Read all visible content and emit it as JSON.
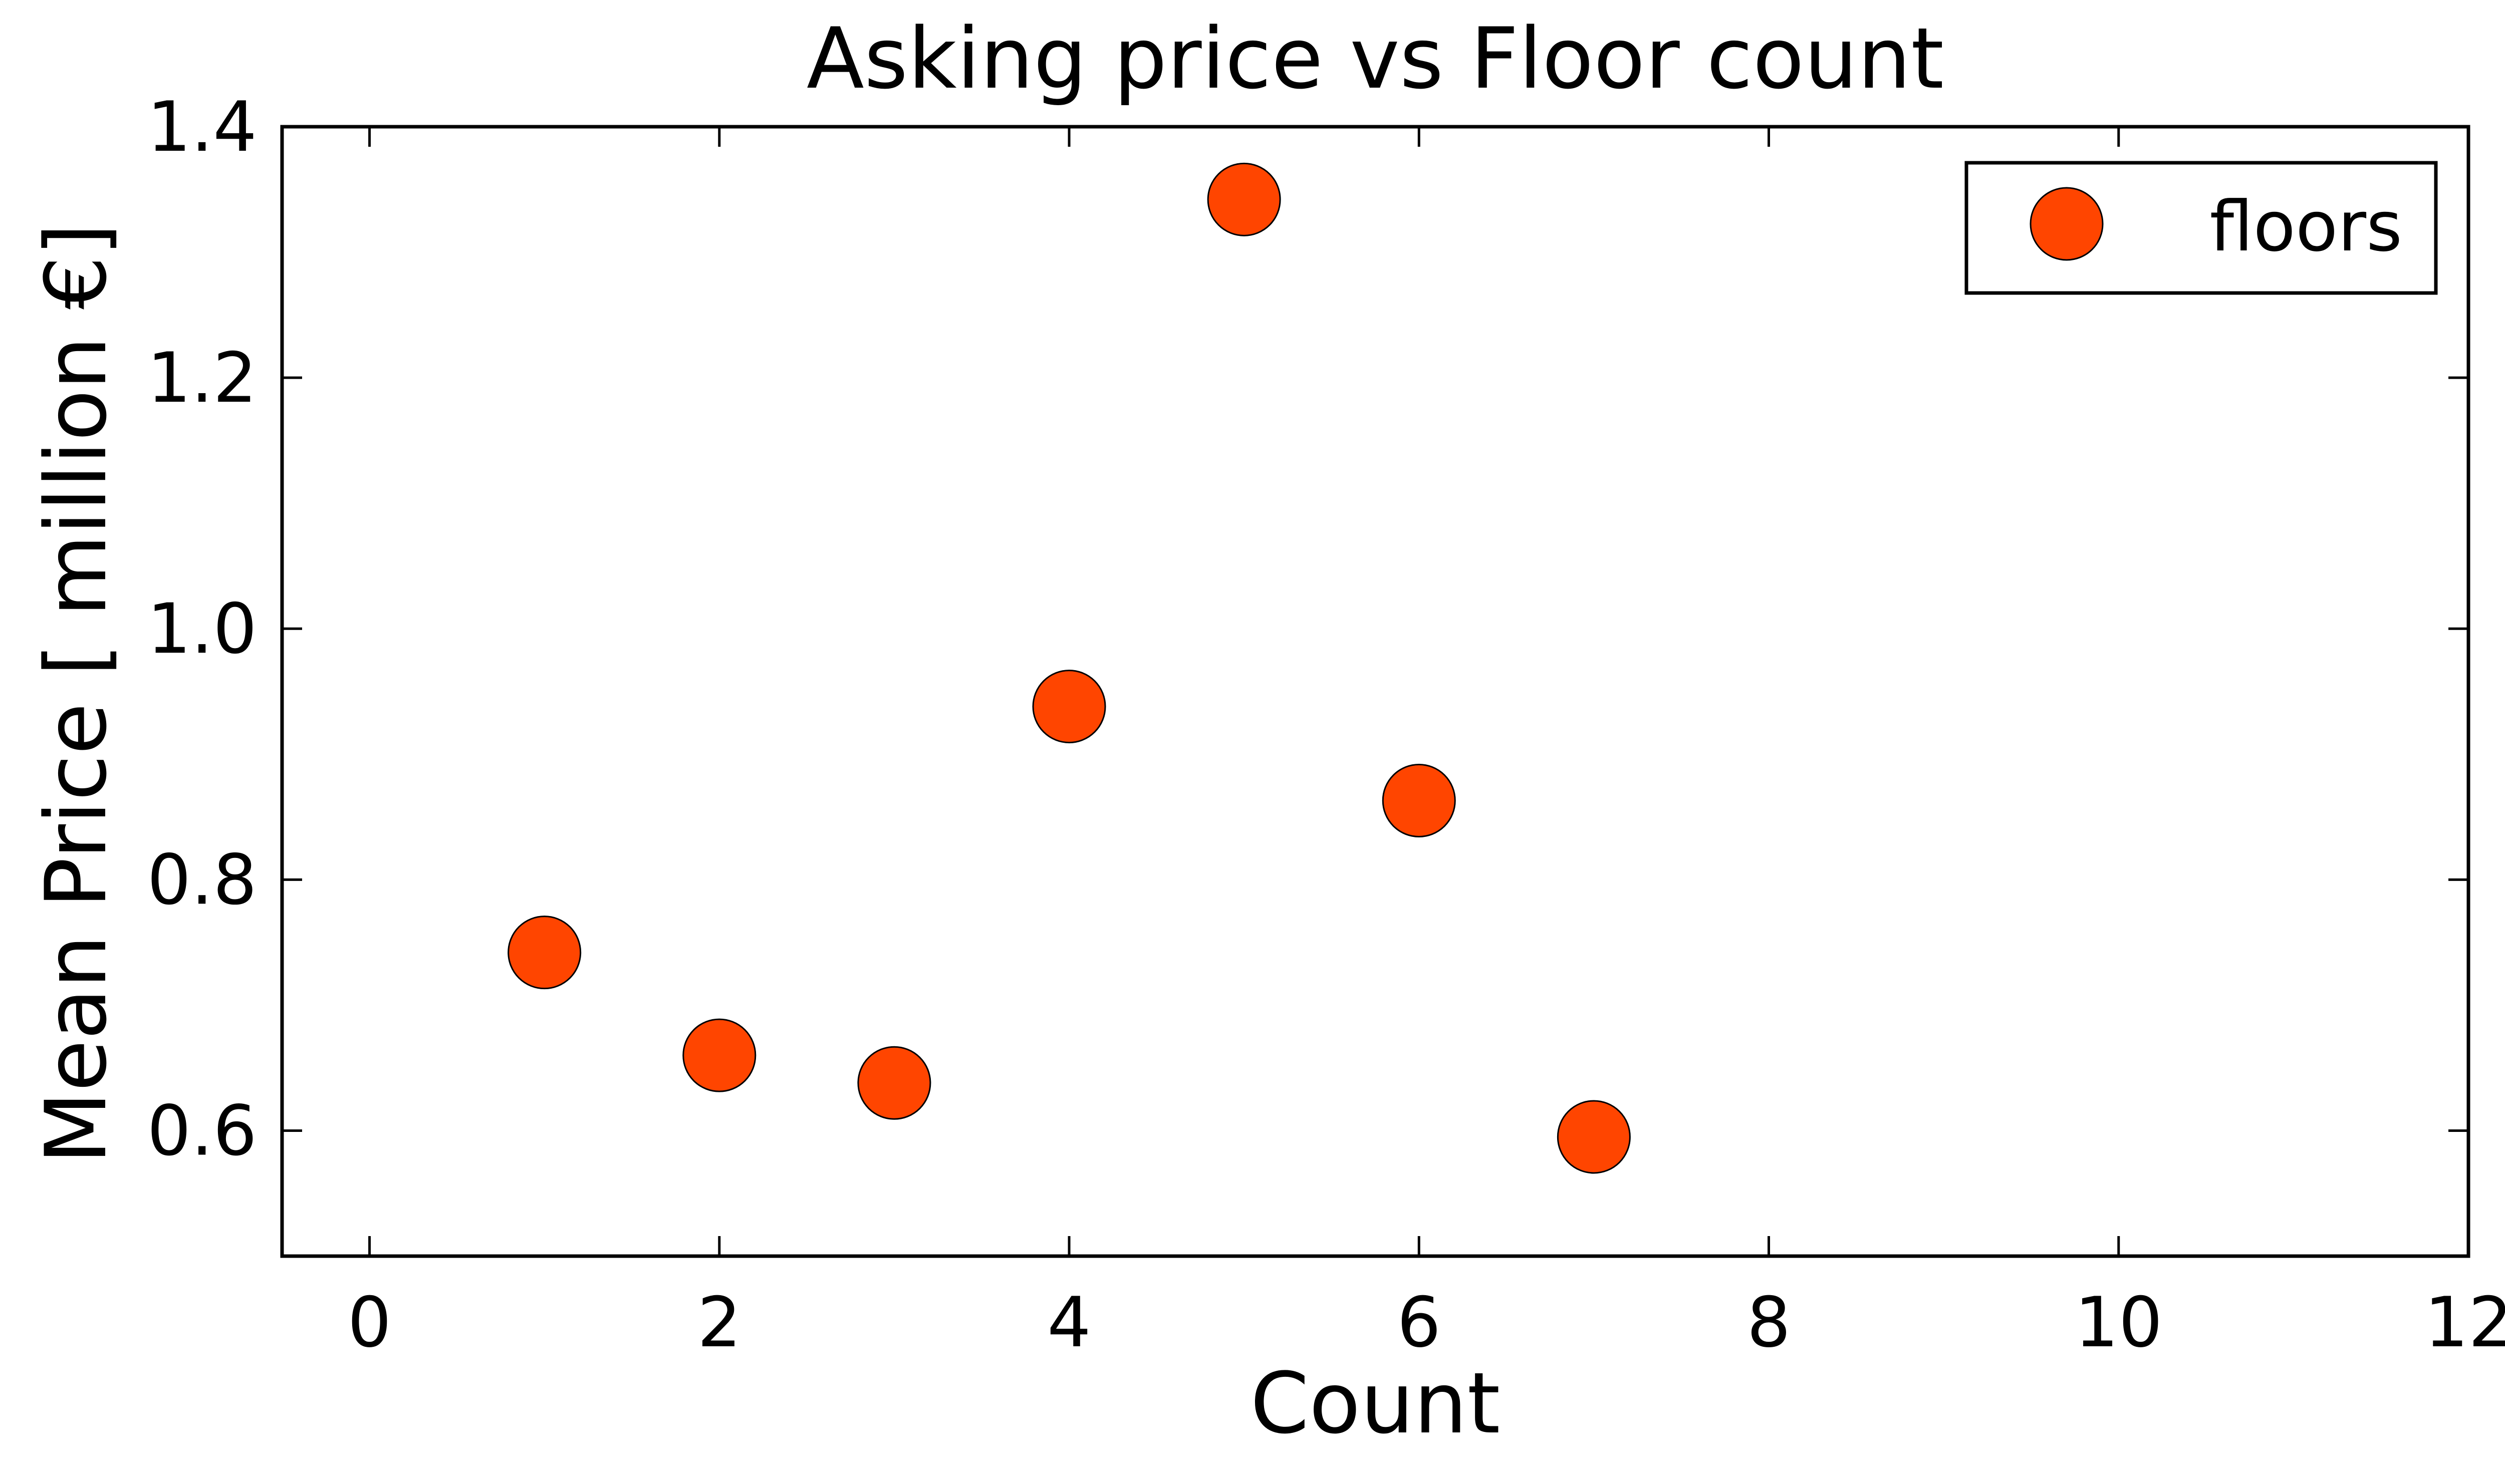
{
  "chart_data": {
    "type": "scatter",
    "title": "Asking price vs Floor count",
    "xlabel": "Count",
    "ylabel": "Mean Price [ million €]",
    "xlim": [
      -0.5,
      12
    ],
    "ylim": [
      0.5,
      1.4
    ],
    "xticks": [
      0,
      2,
      4,
      6,
      8,
      10,
      12
    ],
    "xtick_labels": [
      "0",
      "2",
      "4",
      "6",
      "8",
      "10",
      "12"
    ],
    "yticks": [
      0.6,
      0.8,
      1.0,
      1.2,
      1.4
    ],
    "ytick_labels": [
      "0.6",
      "0.8",
      "1.0",
      "1.2",
      "1.4"
    ],
    "grid": false,
    "legend_position": "top-right",
    "series": [
      {
        "name": "floors",
        "color": "#ff4500",
        "edge_color": "#000000",
        "marker": "circle",
        "x": [
          1,
          2,
          3,
          4,
          5,
          6,
          7
        ],
        "y": [
          0.742,
          0.66,
          0.638,
          0.938,
          1.342,
          0.863,
          0.595
        ]
      }
    ]
  }
}
